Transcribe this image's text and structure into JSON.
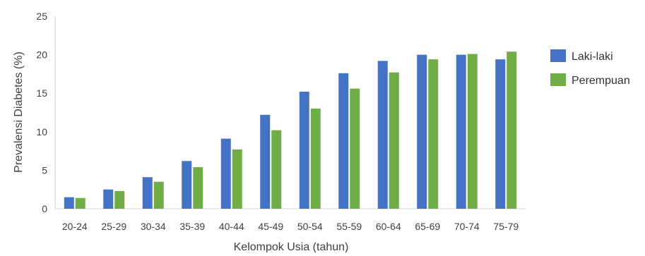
{
  "chart_data": {
    "type": "bar",
    "title": "",
    "xlabel": "Kelompok Usia (tahun)",
    "ylabel": "Prevalensi Diabetes (%)",
    "ylim": [
      0,
      25
    ],
    "yticks": [
      0,
      5,
      10,
      15,
      20,
      25
    ],
    "grid": false,
    "legend_position": "right",
    "categories": [
      "20-24",
      "25-29",
      "30-34",
      "35-39",
      "40-44",
      "45-49",
      "50-54",
      "55-59",
      "60-64",
      "65-69",
      "70-74",
      "75-79"
    ],
    "series": [
      {
        "name": "Laki-laki",
        "color": "#4472C4",
        "values": [
          1.5,
          2.5,
          4.1,
          6.2,
          9.1,
          12.2,
          15.2,
          17.6,
          19.2,
          20.0,
          20.0,
          19.4
        ]
      },
      {
        "name": "Perempuan",
        "color": "#70AD47",
        "values": [
          1.4,
          2.3,
          3.5,
          5.4,
          7.7,
          10.2,
          13.0,
          15.6,
          17.7,
          19.4,
          20.1,
          20.4
        ]
      }
    ]
  }
}
